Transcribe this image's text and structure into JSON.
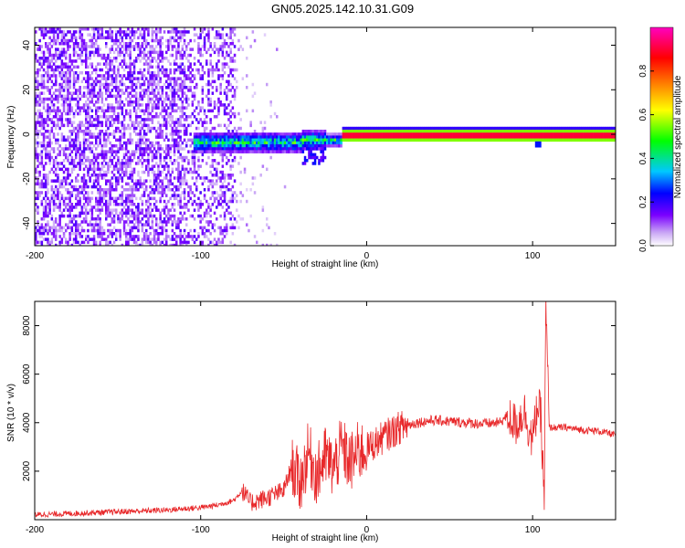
{
  "title": "GN05.2025.142.10.31.G09",
  "chart_data": [
    {
      "type": "heatmap",
      "xlabel": "Height of straight line (km)",
      "ylabel": "Frequency (Hz)",
      "xlim": [
        -200,
        150
      ],
      "ylim": [
        -50,
        48
      ],
      "xticks": [
        -200,
        -100,
        0,
        100
      ],
      "yticks": [
        -40,
        -20,
        0,
        20,
        40
      ],
      "colorbar": {
        "label": "Normalized spectral amplitude",
        "range": [
          0.0,
          1.0
        ],
        "ticks": [
          0.0,
          0.2,
          0.4,
          0.6,
          0.8
        ],
        "colormap": [
          "#ffffff",
          "#c9a6f5",
          "#7a00ff",
          "#0000ff",
          "#00c8ff",
          "#00ff00",
          "#ffff00",
          "#ff8000",
          "#ff0000",
          "#ff00c0"
        ]
      },
      "description_points": [
        {
          "x_range": [
            -200,
            -80
          ],
          "freq_range": [
            -50,
            48
          ],
          "amplitude": 0.1
        },
        {
          "x_range": [
            -100,
            -20
          ],
          "freq_center": -2,
          "freq_spread": 6,
          "amplitude": 0.45
        },
        {
          "x_range": [
            -20,
            150
          ],
          "freq_center": 0.5,
          "freq_spread": 1,
          "amplitude": 0.95
        }
      ]
    },
    {
      "type": "line",
      "xlabel": "Height of straight line (km)",
      "ylabel": "SNR (10 * v/v)",
      "xlim": [
        -200,
        150
      ],
      "ylim": [
        0,
        9000
      ],
      "xticks": [
        -200,
        -100,
        0,
        100
      ],
      "yticks": [
        2000,
        4000,
        6000,
        8000
      ],
      "line_color": "#e8282a",
      "series": [
        {
          "x": [
            -200,
            -180,
            -160,
            -140,
            -120,
            -100,
            -90,
            -80,
            -75,
            -70,
            -60,
            -50,
            -45,
            -40,
            -35,
            -30,
            -25,
            -20,
            -15,
            -10,
            -5,
            0,
            10,
            20,
            30,
            40,
            50,
            60,
            70,
            80,
            85,
            90,
            95,
            100,
            103,
            105,
            107,
            108,
            110,
            120,
            130,
            140,
            150
          ],
          "y": [
            200,
            250,
            300,
            350,
            400,
            500,
            600,
            800,
            1200,
            700,
            900,
            1200,
            2200,
            1500,
            2800,
            1800,
            2600,
            2100,
            3000,
            2300,
            2800,
            2900,
            3400,
            3800,
            4000,
            4100,
            4050,
            4000,
            3950,
            4000,
            4300,
            3900,
            4500,
            3200,
            4800,
            4200,
            900,
            8800,
            3800,
            3800,
            3700,
            3650,
            3500
          ]
        }
      ]
    }
  ]
}
